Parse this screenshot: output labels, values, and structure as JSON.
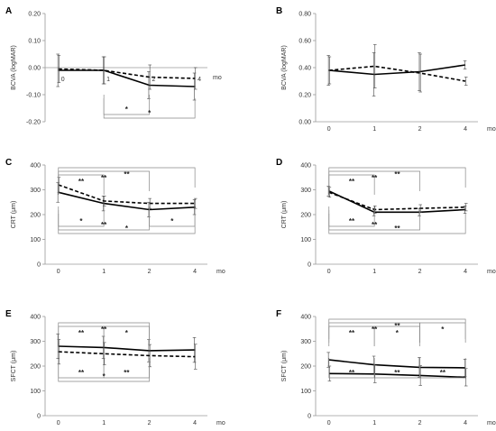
{
  "chart_data": [
    {
      "type": "line",
      "panel_label": "A",
      "ylabel": "BCVA (logMAR)",
      "unit": "mo",
      "x": [
        0,
        1,
        2,
        4
      ],
      "ylim": [
        -0.2,
        0.2
      ],
      "yticks": [
        "0.20",
        "0.10",
        "0.00",
        "-0.10",
        "-0.20"
      ],
      "ytick_values": [
        0.2,
        0.1,
        0.0,
        -0.1,
        -0.2
      ],
      "series": [
        {
          "style": "solid",
          "values": [
            -0.01,
            -0.01,
            -0.065,
            -0.07
          ],
          "errors": [
            0.06,
            0.05,
            0.05,
            0.05
          ]
        },
        {
          "style": "dashed",
          "values": [
            -0.005,
            -0.01,
            -0.035,
            -0.04
          ],
          "errors": [
            0.05,
            0.05,
            0.045,
            0.04
          ]
        }
      ],
      "point_labels": [
        {
          "text": "0",
          "x": 0
        },
        {
          "text": "1",
          "x": 1
        },
        {
          "text": "2",
          "x": 2
        },
        {
          "text": "4",
          "x": 4
        }
      ],
      "brackets": [
        {
          "from": 1,
          "to": 2,
          "pos": "below",
          "level": 1,
          "label": "*"
        },
        {
          "from": 1,
          "to": 4,
          "pos": "below",
          "level": 2,
          "label": "*"
        }
      ]
    },
    {
      "type": "line",
      "panel_label": "B",
      "ylabel": "BCVA (logMAR)",
      "unit": "mo",
      "x": [
        0,
        1,
        2,
        4
      ],
      "ylim": [
        0,
        0.8
      ],
      "yticks": [
        "0.80",
        "0.60",
        "0.40",
        "0.20",
        "0.00"
      ],
      "ytick_values": [
        0.8,
        0.6,
        0.4,
        0.2,
        0.0
      ],
      "series": [
        {
          "style": "solid",
          "values": [
            0.38,
            0.35,
            0.37,
            0.42
          ],
          "errors": [
            0.11,
            0.16,
            0.14,
            0.03
          ]
        },
        {
          "style": "dashed",
          "values": [
            0.38,
            0.41,
            0.36,
            0.3
          ],
          "errors": [
            0.1,
            0.16,
            0.14,
            0.03
          ]
        }
      ],
      "point_labels": [],
      "brackets": []
    },
    {
      "type": "line",
      "panel_label": "C",
      "ylabel": "CRT (μm)",
      "unit": "mo",
      "x": [
        0,
        1,
        2,
        4
      ],
      "ylim": [
        0,
        400
      ],
      "yticks": [
        "400",
        "300",
        "200",
        "100",
        "0"
      ],
      "ytick_values": [
        400,
        300,
        200,
        100,
        0
      ],
      "series": [
        {
          "style": "solid",
          "values": [
            290,
            245,
            220,
            230
          ],
          "errors": [
            40,
            30,
            30,
            30
          ]
        },
        {
          "style": "dashed",
          "values": [
            320,
            255,
            245,
            245
          ],
          "errors": [
            30,
            20,
            20,
            20
          ]
        }
      ],
      "point_labels": [],
      "brackets": [
        {
          "from": 0,
          "to": 1,
          "pos": "above",
          "level": 1,
          "label": "**"
        },
        {
          "from": 0,
          "to": 2,
          "pos": "above",
          "level": 2,
          "label": "**"
        },
        {
          "from": 0,
          "to": 4,
          "pos": "above",
          "level": 3,
          "label": "**"
        },
        {
          "from": 0,
          "to": 1,
          "pos": "below",
          "level": 1,
          "label": "*"
        },
        {
          "from": 0,
          "to": 2,
          "pos": "below",
          "level": 2,
          "label": "**"
        },
        {
          "from": 0,
          "to": 4,
          "pos": "below",
          "level": 3,
          "label": "*"
        },
        {
          "from": 2,
          "to": 4,
          "pos": "below",
          "level": 1,
          "label": "*"
        }
      ]
    },
    {
      "type": "line",
      "panel_label": "D",
      "ylabel": "CRT (μm)",
      "unit": "mo",
      "x": [
        0,
        1,
        2,
        4
      ],
      "ylim": [
        0,
        400
      ],
      "yticks": [
        "400",
        "300",
        "200",
        "100",
        "0"
      ],
      "ytick_values": [
        400,
        300,
        200,
        100,
        0
      ],
      "series": [
        {
          "style": "solid",
          "values": [
            295,
            210,
            210,
            220
          ],
          "errors": [
            20,
            15,
            15,
            15
          ]
        },
        {
          "style": "dashed",
          "values": [
            290,
            220,
            225,
            230
          ],
          "errors": [
            20,
            15,
            15,
            15
          ]
        }
      ],
      "point_labels": [],
      "brackets": [
        {
          "from": 0,
          "to": 1,
          "pos": "above",
          "level": 1,
          "label": "**"
        },
        {
          "from": 0,
          "to": 2,
          "pos": "above",
          "level": 2,
          "label": "**"
        },
        {
          "from": 0,
          "to": 4,
          "pos": "above",
          "level": 3,
          "label": "**"
        },
        {
          "from": 0,
          "to": 1,
          "pos": "below",
          "level": 1,
          "label": "**"
        },
        {
          "from": 0,
          "to": 2,
          "pos": "below",
          "level": 2,
          "label": "**"
        },
        {
          "from": 0,
          "to": 4,
          "pos": "below",
          "level": 3,
          "label": "**"
        }
      ]
    },
    {
      "type": "line",
      "panel_label": "E",
      "ylabel": "SFCT (μm)",
      "unit": "mo",
      "x": [
        0,
        1,
        2,
        4
      ],
      "ylim": [
        0,
        400
      ],
      "yticks": [
        "400",
        "300",
        "200",
        "100",
        "0"
      ],
      "ytick_values": [
        400,
        300,
        200,
        100,
        0
      ],
      "series": [
        {
          "style": "solid",
          "values": [
            280,
            275,
            262,
            265
          ],
          "errors": [
            50,
            45,
            45,
            50
          ]
        },
        {
          "style": "dashed",
          "values": [
            258,
            250,
            242,
            238
          ],
          "errors": [
            50,
            45,
            45,
            50
          ]
        }
      ],
      "point_labels": [],
      "brackets": [
        {
          "from": 0,
          "to": 1,
          "pos": "above",
          "level": 1,
          "label": "**"
        },
        {
          "from": 1,
          "to": 2,
          "pos": "above",
          "level": 1,
          "label": "*"
        },
        {
          "from": 0,
          "to": 2,
          "pos": "above",
          "level": 2,
          "label": "**"
        },
        {
          "from": 0,
          "to": 1,
          "pos": "below",
          "level": 1,
          "label": "**"
        },
        {
          "from": 1,
          "to": 2,
          "pos": "below",
          "level": 1,
          "label": "**"
        },
        {
          "from": 0,
          "to": 2,
          "pos": "below",
          "level": 2,
          "label": "*"
        }
      ]
    },
    {
      "type": "line",
      "panel_label": "F",
      "ylabel": "SFCT (μm)",
      "unit": "mo",
      "x": [
        0,
        1,
        2,
        4
      ],
      "ylim": [
        0,
        400
      ],
      "yticks": [
        "400",
        "300",
        "200",
        "100",
        "0"
      ],
      "ytick_values": [
        400,
        300,
        200,
        100,
        0
      ],
      "series": [
        {
          "style": "solid",
          "values": [
            225,
            205,
            195,
            193
          ],
          "errors": [
            30,
            35,
            40,
            35
          ]
        },
        {
          "style": "solid",
          "values": [
            170,
            168,
            162,
            155
          ],
          "errors": [
            30,
            35,
            40,
            35
          ]
        }
      ],
      "point_labels": [],
      "brackets": [
        {
          "from": 0,
          "to": 1,
          "pos": "above",
          "level": 1,
          "label": "**"
        },
        {
          "from": 1,
          "to": 2,
          "pos": "above",
          "level": 1,
          "label": "*"
        },
        {
          "from": 0,
          "to": 2,
          "pos": "above",
          "level": 2,
          "label": "**"
        },
        {
          "from": 2,
          "to": 4,
          "pos": "above",
          "level": 2,
          "label": "*"
        },
        {
          "from": 0,
          "to": 4,
          "pos": "above",
          "level": 3,
          "label": "**"
        },
        {
          "from": 0,
          "to": 1,
          "pos": "below",
          "level": 1,
          "label": "**"
        },
        {
          "from": 1,
          "to": 2,
          "pos": "below",
          "level": 1,
          "label": "**"
        },
        {
          "from": 2,
          "to": 4,
          "pos": "below",
          "level": 1,
          "label": "**"
        }
      ]
    }
  ]
}
